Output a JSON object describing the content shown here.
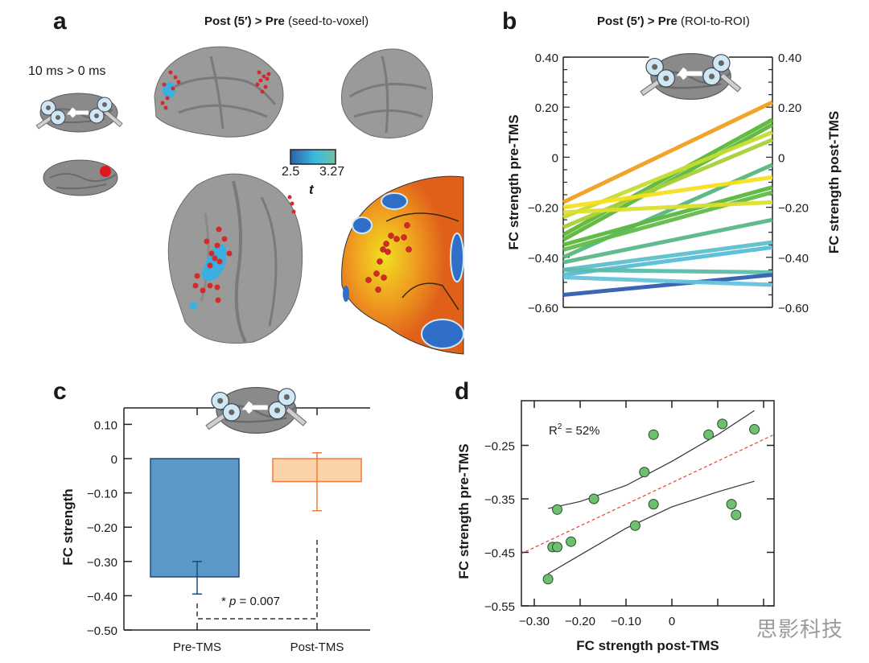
{
  "panels": {
    "a": {
      "letter": "a",
      "title_bold": "Post (5′) > Pre",
      "title_rest": " (seed-to-voxel)",
      "sublabel": "10 ms > 0 ms",
      "colorbar": {
        "min_label": "2.5",
        "max_label": "3.27",
        "stat_label": "t",
        "colors": [
          "#2f5fa8",
          "#3bbbe0",
          "#6fc0a0"
        ]
      },
      "marker_color": "#d42a2a",
      "cluster_color": "#3bb0e0"
    },
    "b": {
      "letter": "b",
      "title_bold": "Post (5′) > Pre",
      "title_rest": " (ROI-to-ROI)"
    },
    "c": {
      "letter": "c"
    },
    "d": {
      "letter": "d"
    }
  },
  "watermark": "思影科技",
  "chart_data": [
    {
      "id": "b",
      "type": "line",
      "title": "Post (5′) > Pre (ROI-to-ROI)",
      "ylabel_left": "FC strength pre-TMS",
      "ylabel_right": "FC strength post-TMS",
      "ylim": [
        -0.6,
        0.4
      ],
      "yticks": [
        0.4,
        0.2,
        0,
        -0.2,
        -0.4,
        -0.6
      ],
      "ytick_labels": [
        "0.40",
        "0.20",
        "0",
        "−0.20",
        "−0.40",
        "−0.60"
      ],
      "series": [
        {
          "pre": -0.18,
          "post": 0.22,
          "color": "#f0a020"
        },
        {
          "pre": -0.31,
          "post": 0.15,
          "color": "#5cb83a"
        },
        {
          "pre": -0.33,
          "post": 0.13,
          "color": "#5cb83a"
        },
        {
          "pre": -0.24,
          "post": 0.1,
          "color": "#c8dc30"
        },
        {
          "pre": -0.28,
          "post": 0.07,
          "color": "#a8d038"
        },
        {
          "pre": -0.4,
          "post": -0.03,
          "color": "#56b880"
        },
        {
          "pre": -0.2,
          "post": -0.08,
          "color": "#f8e020"
        },
        {
          "pre": -0.35,
          "post": -0.12,
          "color": "#5ab840"
        },
        {
          "pre": -0.37,
          "post": -0.14,
          "color": "#62bc48"
        },
        {
          "pre": -0.22,
          "post": -0.18,
          "color": "#dde030"
        },
        {
          "pre": -0.42,
          "post": -0.25,
          "color": "#58b888"
        },
        {
          "pre": -0.45,
          "post": -0.34,
          "color": "#5cc0cc"
        },
        {
          "pre": -0.47,
          "post": -0.36,
          "color": "#58bcd8"
        },
        {
          "pre": -0.45,
          "post": -0.46,
          "color": "#5cbca8"
        },
        {
          "pre": -0.55,
          "post": -0.47,
          "color": "#2f5fb0"
        },
        {
          "pre": -0.48,
          "post": -0.51,
          "color": "#66c4dc"
        }
      ]
    },
    {
      "id": "c",
      "type": "bar",
      "categories": [
        "Pre-TMS",
        "Post-TMS"
      ],
      "values": [
        -0.345,
        -0.067
      ],
      "error_low": [
        -0.395,
        -0.152
      ],
      "error_high": [
        -0.3,
        0.017
      ],
      "colors": {
        "fill": [
          "#5b98c8",
          "#fbd3a8"
        ],
        "stroke": [
          "#1c4a78",
          "#ee7c3a"
        ]
      },
      "ylabel": "FC strength",
      "ylim": [
        -0.5,
        0.15
      ],
      "yticks": [
        0.1,
        0,
        -0.1,
        -0.2,
        -0.3,
        -0.4,
        -0.5
      ],
      "ytick_labels": [
        "0.10",
        "0",
        "−0.10",
        "−0.20",
        "−0.30",
        "−0.40",
        "−0.50"
      ],
      "annotation": {
        "star": "*",
        "p_label": "p",
        "text": " = 0.007"
      }
    },
    {
      "id": "d",
      "type": "scatter",
      "xlabel": "FC strength post-TMS",
      "ylabel": "FC strength pre-TMS",
      "xlim": [
        -0.33,
        0.22
      ],
      "ylim": [
        -0.55,
        -0.17
      ],
      "xticks": [
        -0.3,
        -0.2,
        -0.1,
        0,
        0.1,
        0.2
      ],
      "xtick_labels": [
        "−0.30",
        "−0.20",
        "−0.10",
        "0",
        "",
        ""
      ],
      "yticks": [
        -0.25,
        -0.35,
        -0.45,
        -0.55
      ],
      "ytick_labels": [
        "−0.25",
        "−0.35",
        "−0.45",
        "−0.55"
      ],
      "r2_label": "R",
      "r2_sup": "2",
      "r2_value": " = 52%",
      "points": [
        {
          "x": -0.27,
          "y": -0.5
        },
        {
          "x": -0.26,
          "y": -0.44
        },
        {
          "x": -0.25,
          "y": -0.44
        },
        {
          "x": -0.25,
          "y": -0.37
        },
        {
          "x": -0.22,
          "y": -0.43
        },
        {
          "x": -0.17,
          "y": -0.35
        },
        {
          "x": -0.08,
          "y": -0.4
        },
        {
          "x": -0.06,
          "y": -0.3
        },
        {
          "x": -0.04,
          "y": -0.36
        },
        {
          "x": -0.04,
          "y": -0.23
        },
        {
          "x": 0.08,
          "y": -0.23
        },
        {
          "x": 0.11,
          "y": -0.21
        },
        {
          "x": 0.13,
          "y": -0.36
        },
        {
          "x": 0.14,
          "y": -0.38
        },
        {
          "x": 0.18,
          "y": -0.22
        }
      ],
      "fit_line": {
        "x": [
          -0.33,
          0.22
        ],
        "y": [
          -0.453,
          -0.231
        ],
        "color": "#e8402a"
      },
      "ci_upper": {
        "x": [
          -0.27,
          -0.2,
          -0.1,
          0,
          0.1,
          0.18
        ],
        "y": [
          -0.368,
          -0.355,
          -0.325,
          -0.28,
          -0.23,
          -0.185
        ]
      },
      "ci_lower": {
        "x": [
          -0.27,
          -0.2,
          -0.1,
          0,
          0.1,
          0.18
        ],
        "y": [
          -0.49,
          -0.455,
          -0.405,
          -0.365,
          -0.337,
          -0.317
        ]
      },
      "point_color": "#6cc070"
    }
  ]
}
